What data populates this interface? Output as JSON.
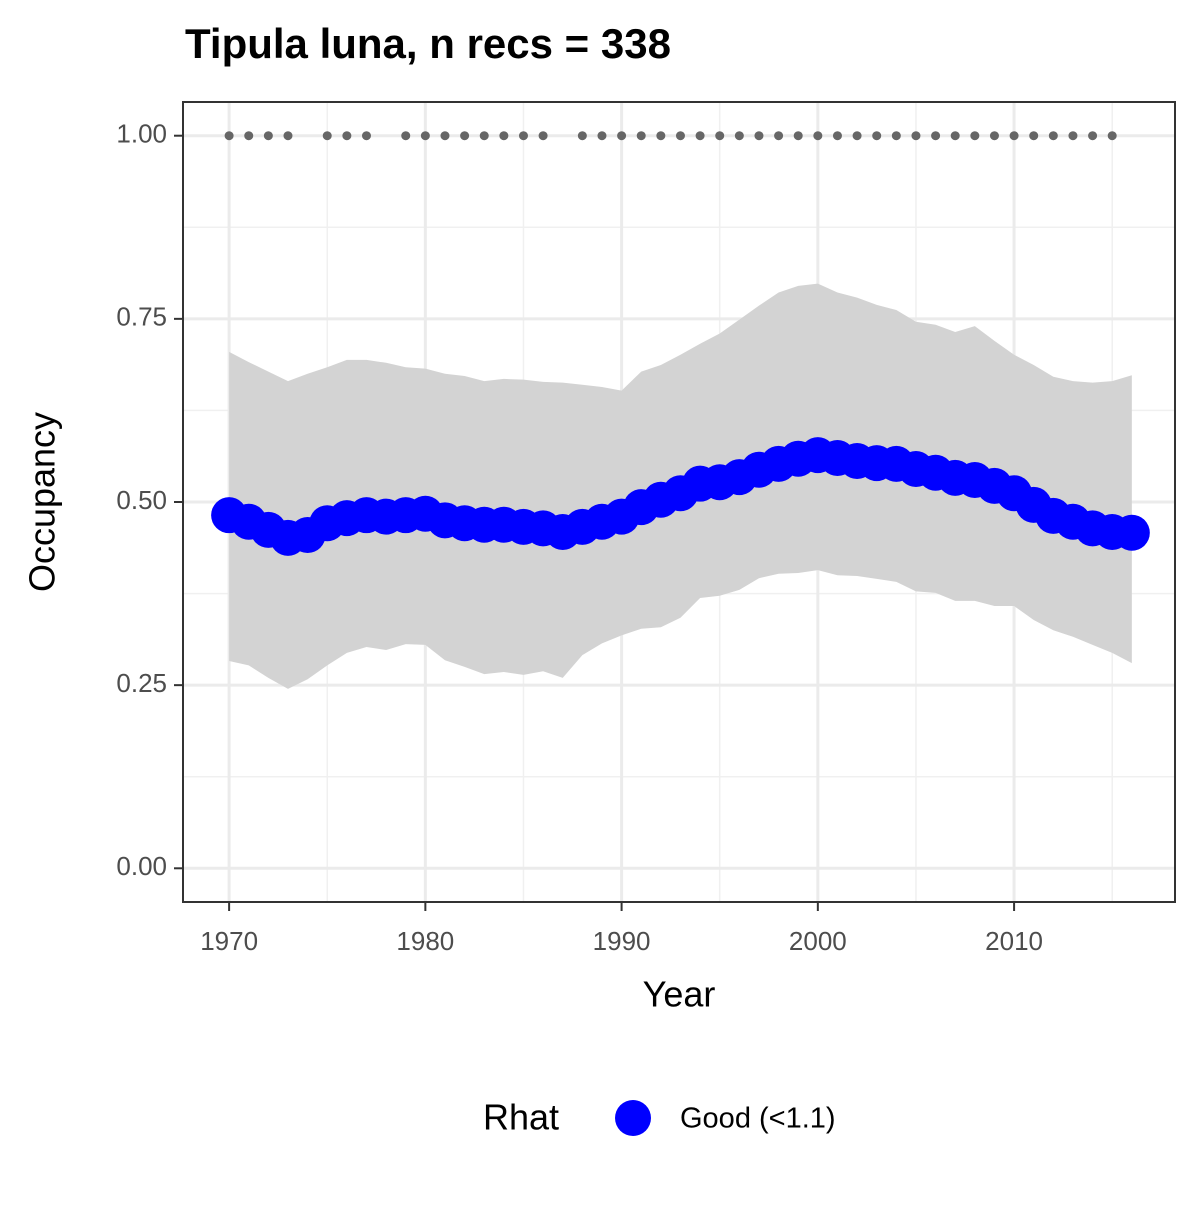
{
  "chart_data": {
    "type": "scatter",
    "title": "Tipula luna, n recs = 338",
    "x_label": "Year",
    "y_label": "Occupancy",
    "legend_title": "Rhat",
    "legend_position": "bottom",
    "xlim": [
      1967.65,
      2018.2
    ],
    "ylim": [
      -0.046,
      1.046
    ],
    "xticks": [
      1970,
      1980,
      1990,
      2000,
      2010
    ],
    "xminor": [
      1975,
      1985,
      1995,
      2005,
      2015
    ],
    "yticks": [
      {
        "value": 0,
        "label": "0.00"
      },
      {
        "value": 0.25,
        "label": "0.25"
      },
      {
        "value": 0.5,
        "label": "0.50"
      },
      {
        "value": 0.75,
        "label": "0.75"
      },
      {
        "value": 1,
        "label": "1.00"
      }
    ],
    "yminor": [
      0.125,
      0.375,
      0.625,
      0.875
    ],
    "grid": true,
    "x": [
      1970,
      1971,
      1972,
      1973,
      1974,
      1975,
      1976,
      1977,
      1978,
      1979,
      1980,
      1981,
      1982,
      1983,
      1984,
      1985,
      1986,
      1987,
      1988,
      1989,
      1990,
      1991,
      1992,
      1993,
      1994,
      1995,
      1996,
      1997,
      1998,
      1999,
      2000,
      2001,
      2002,
      2003,
      2004,
      2005,
      2006,
      2007,
      2008,
      2009,
      2010,
      2011,
      2012,
      2013,
      2014,
      2015,
      2016
    ],
    "series": [
      {
        "name": "Good (<1.1)",
        "color": "#0000ff",
        "values": [
          0.482,
          0.473,
          0.462,
          0.451,
          0.455,
          0.471,
          0.478,
          0.482,
          0.48,
          0.482,
          0.484,
          0.475,
          0.471,
          0.469,
          0.469,
          0.466,
          0.464,
          0.459,
          0.466,
          0.473,
          0.48,
          0.493,
          0.503,
          0.512,
          0.525,
          0.527,
          0.534,
          0.544,
          0.552,
          0.559,
          0.564,
          0.56,
          0.556,
          0.553,
          0.552,
          0.545,
          0.54,
          0.533,
          0.53,
          0.522,
          0.512,
          0.496,
          0.481,
          0.473,
          0.464,
          0.459,
          0.458
        ]
      }
    ],
    "band": {
      "color": "#d3d3d3",
      "upper": [
        0.705,
        0.691,
        0.678,
        0.665,
        0.675,
        0.684,
        0.694,
        0.694,
        0.69,
        0.684,
        0.682,
        0.675,
        0.672,
        0.665,
        0.668,
        0.667,
        0.664,
        0.663,
        0.66,
        0.657,
        0.652,
        0.678,
        0.687,
        0.701,
        0.716,
        0.73,
        0.749,
        0.768,
        0.786,
        0.795,
        0.798,
        0.786,
        0.779,
        0.769,
        0.762,
        0.746,
        0.742,
        0.732,
        0.74,
        0.72,
        0.701,
        0.687,
        0.671,
        0.665,
        0.663,
        0.665,
        0.673
      ],
      "lower": [
        0.283,
        0.277,
        0.26,
        0.245,
        0.258,
        0.277,
        0.294,
        0.302,
        0.298,
        0.306,
        0.305,
        0.284,
        0.275,
        0.265,
        0.268,
        0.264,
        0.269,
        0.26,
        0.291,
        0.307,
        0.318,
        0.327,
        0.329,
        0.342,
        0.369,
        0.372,
        0.38,
        0.396,
        0.402,
        0.403,
        0.407,
        0.4,
        0.399,
        0.395,
        0.391,
        0.378,
        0.376,
        0.365,
        0.365,
        0.358,
        0.358,
        0.339,
        0.325,
        0.316,
        0.305,
        0.294,
        0.28
      ]
    },
    "records": {
      "color": "#666666",
      "x": [
        1970,
        1971,
        1972,
        1973,
        1975,
        1976,
        1977,
        1979,
        1980,
        1981,
        1982,
        1983,
        1984,
        1985,
        1986,
        1988,
        1989,
        1990,
        1991,
        1992,
        1993,
        1994,
        1995,
        1996,
        1997,
        1998,
        1999,
        2000,
        2001,
        2002,
        2003,
        2004,
        2005,
        2006,
        2007,
        2008,
        2009,
        2010,
        2011,
        2012,
        2013,
        2014,
        2015
      ],
      "values": [
        1,
        1,
        1,
        1,
        1,
        1,
        1,
        1,
        1,
        1,
        1,
        1,
        1,
        1,
        1,
        1,
        1,
        1,
        1,
        1,
        1,
        1,
        1,
        1,
        1,
        1,
        1,
        1,
        1,
        1,
        1,
        1,
        1,
        1,
        1,
        1,
        1,
        1,
        1,
        1,
        1,
        1,
        1
      ]
    }
  }
}
